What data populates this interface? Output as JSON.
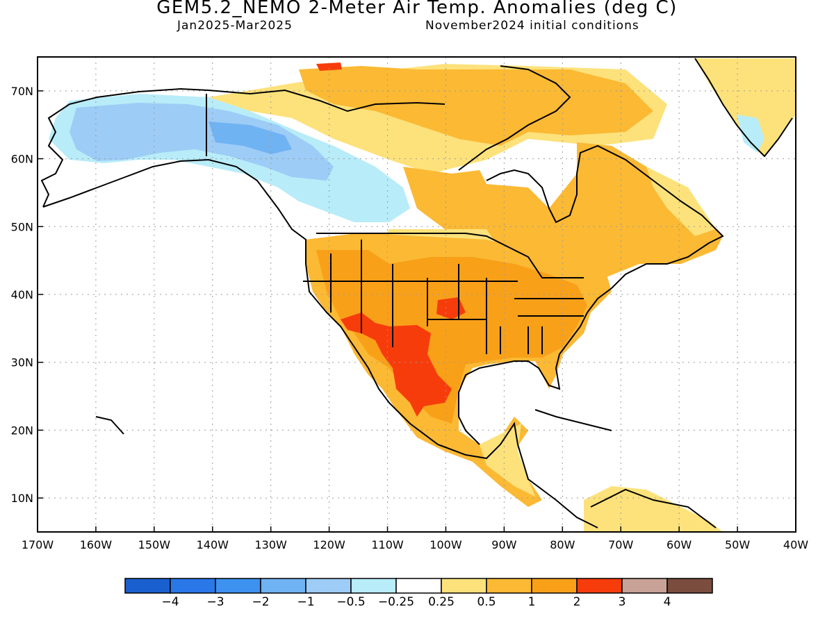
{
  "header": {
    "title": "GEM5.2_NEMO 2-Meter Air Temp. Anomalies (deg C)",
    "period": "Jan2025-Mar2025",
    "initial_conditions": "November2024 initial conditions"
  },
  "axes": {
    "lon_labels": [
      "170W",
      "160W",
      "150W",
      "140W",
      "130W",
      "120W",
      "110W",
      "100W",
      "90W",
      "80W",
      "70W",
      "60W",
      "50W",
      "40W"
    ],
    "lat_labels": [
      "70N",
      "60N",
      "50N",
      "40N",
      "30N",
      "20N",
      "10N"
    ]
  },
  "colorbar": {
    "colors": [
      "#1a5fce",
      "#2a78e8",
      "#3d91ef",
      "#70b3f3",
      "#9dccf6",
      "#b8ecf8",
      "#ffffff",
      "#fde27b",
      "#fbb934",
      "#f9a019",
      "#f73c0c",
      "#c8a296",
      "#7a4d3e"
    ],
    "labels": [
      "-4",
      "-3",
      "-2",
      "-1",
      "-0.5",
      "-0.25",
      "0.25",
      "0.5",
      "1",
      "2",
      "3",
      "4"
    ]
  },
  "map": {
    "region": "North America",
    "lon_range": [
      -170,
      -40
    ],
    "lat_range": [
      5,
      75
    ],
    "anomaly_regions": [
      {
        "name": "Alaska and Yukon",
        "category": "-1 to -0.5",
        "color": "#9dccf6"
      },
      {
        "name": "Western Canada",
        "category": "-0.5 to -0.25",
        "color": "#b8ecf8"
      },
      {
        "name": "Southwest US and northern Mexico",
        "category": "2 to 3",
        "color": "#f73c0c"
      },
      {
        "name": "Central and eastern United States",
        "category": "1 to 2",
        "color": "#f9a019"
      },
      {
        "name": "Eastern Canada",
        "category": "0.5 to 1",
        "color": "#fbb934"
      },
      {
        "name": "Caribbean and northern South America",
        "category": "0.25 to 0.5",
        "color": "#fde27b"
      },
      {
        "name": "Greenland",
        "category": "0.25 to 0.5",
        "color": "#fde27b"
      }
    ]
  }
}
